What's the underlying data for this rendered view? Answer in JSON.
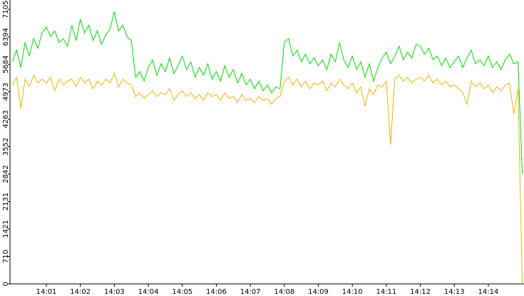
{
  "chart_data": {
    "type": "line",
    "x": [
      0,
      0.125,
      0.25,
      0.375,
      0.5,
      0.625,
      0.75,
      0.875,
      1,
      1.125,
      1.25,
      1.375,
      1.5,
      1.625,
      1.75,
      1.875,
      2,
      2.125,
      2.25,
      2.375,
      2.5,
      2.625,
      2.75,
      2.875,
      3,
      3.125,
      3.25,
      3.375,
      3.5,
      3.625,
      3.75,
      3.875,
      4,
      4.125,
      4.25,
      4.375,
      4.5,
      4.625,
      4.75,
      4.875,
      5,
      5.125,
      5.25,
      5.375,
      5.5,
      5.625,
      5.75,
      5.875,
      6,
      6.125,
      6.25,
      6.375,
      6.5,
      6.625,
      6.75,
      6.875,
      7,
      7.125,
      7.25,
      7.375,
      7.5,
      7.625,
      7.75,
      7.875,
      8,
      8.125,
      8.25,
      8.375,
      8.5,
      8.625,
      8.75,
      8.875,
      9,
      9.125,
      9.25,
      9.375,
      9.5,
      9.625,
      9.75,
      9.875,
      10,
      10.125,
      10.25,
      10.375,
      10.5,
      10.625,
      10.75,
      10.875,
      11,
      11.125,
      11.25,
      11.375,
      11.5,
      11.625,
      11.75,
      11.875,
      12,
      12.125,
      12.25,
      12.375,
      12.5,
      12.625,
      12.75,
      12.875,
      13,
      13.125,
      13.25,
      13.375,
      13.5,
      13.625,
      13.75,
      13.875,
      14,
      14.125,
      14.25,
      14.375,
      14.5,
      14.625,
      14.75,
      14.875,
      15
    ],
    "series": [
      {
        "color": "#00dd00",
        "values": [
          5750,
          6050,
          5600,
          6250,
          5900,
          6350,
          6100,
          6500,
          6650,
          6400,
          6550,
          6250,
          6350,
          6150,
          6700,
          6300,
          6850,
          6500,
          6700,
          6300,
          6550,
          6200,
          6450,
          6600,
          7050,
          6550,
          6700,
          6400,
          6300,
          5350,
          5500,
          5250,
          5600,
          5800,
          5400,
          5700,
          5500,
          5850,
          5450,
          5650,
          5900,
          5550,
          5750,
          5350,
          5600,
          5400,
          5700,
          5300,
          5500,
          5250,
          5650,
          5350,
          5550,
          5200,
          5450,
          5150,
          5300,
          5050,
          5250,
          5000,
          5150,
          4950,
          5100,
          5050,
          6250,
          6350,
          5900,
          6050,
          5750,
          5950,
          5700,
          5850,
          5650,
          5800,
          5550,
          5950,
          5750,
          6250,
          5800,
          5600,
          5900,
          5550,
          5750,
          5350,
          5700,
          5250,
          5600,
          5850,
          6000,
          5700,
          5900,
          6150,
          5800,
          6000,
          5850,
          6200,
          6150,
          5950,
          6100,
          5800,
          5900,
          5650,
          5850,
          5600,
          5750,
          5900,
          5600,
          5850,
          6050,
          5700,
          5800,
          5650,
          5900,
          5600,
          5750,
          5550,
          5800,
          5950,
          5700,
          5750,
          2842
        ]
      },
      {
        "color": "#f0b400",
        "values": [
          5150,
          5350,
          4550,
          5300,
          5100,
          5400,
          5200,
          5300,
          5200,
          5350,
          5000,
          5300,
          5150,
          5250,
          5300,
          5100,
          5350,
          5200,
          5300,
          5050,
          5250,
          5150,
          5300,
          5200,
          5450,
          5100,
          5300,
          5200,
          5150,
          4850,
          4950,
          4800,
          4900,
          5000,
          4850,
          4950,
          4900,
          5050,
          4750,
          4900,
          5000,
          4850,
          4950,
          4800,
          4900,
          4750,
          4950,
          4850,
          4900,
          4750,
          4950,
          4800,
          4850,
          4700,
          4900,
          4750,
          4800,
          4700,
          4850,
          4750,
          4800,
          4650,
          4800,
          4850,
          5250,
          5350,
          5150,
          5300,
          5100,
          5250,
          5050,
          5200,
          5150,
          5250,
          5000,
          5200,
          5100,
          5300,
          5150,
          5050,
          5200,
          4950,
          5100,
          4600,
          5050,
          4900,
          5150,
          5100,
          5250,
          3600,
          5300,
          5400,
          5250,
          5350,
          5200,
          5300,
          5350,
          5250,
          5400,
          5200,
          5300,
          5150,
          5250,
          5100,
          5150,
          5050,
          4950,
          4650,
          5250,
          5100,
          5200,
          5050,
          5150,
          4950,
          5100,
          5000,
          5150,
          5200,
          4400,
          5050,
          0
        ]
      }
    ],
    "xlim": [
      -0.07,
      15.05
    ],
    "xticks": [
      {
        "value": 1,
        "label": "14:01"
      },
      {
        "value": 2,
        "label": "14:02"
      },
      {
        "value": 3,
        "label": "14:03"
      },
      {
        "value": 4,
        "label": "14:04"
      },
      {
        "value": 5,
        "label": "14:05"
      },
      {
        "value": 6,
        "label": "14:06"
      },
      {
        "value": 7,
        "label": "14:07"
      },
      {
        "value": 8,
        "label": "14:08"
      },
      {
        "value": 9,
        "label": "14:09"
      },
      {
        "value": 10,
        "label": "14:10"
      },
      {
        "value": 11,
        "label": "14:11"
      },
      {
        "value": 12,
        "label": "14:12"
      },
      {
        "value": 13,
        "label": "14:13"
      },
      {
        "value": 14,
        "label": "14:14"
      }
    ],
    "ylim": [
      0,
      7350
    ],
    "yticks": [
      0,
      710,
      1421,
      2131,
      2842,
      3552,
      4263,
      4973,
      5684,
      6394,
      7105
    ]
  }
}
